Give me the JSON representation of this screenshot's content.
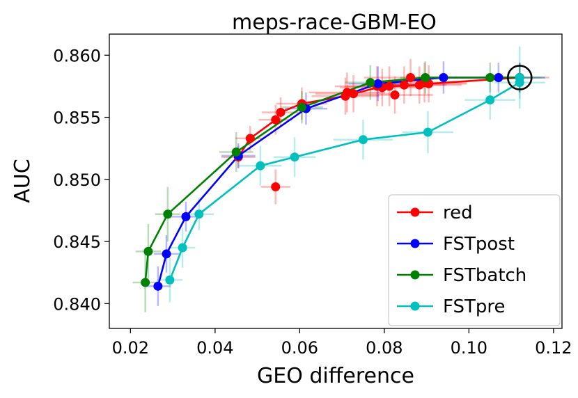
{
  "chart_data": {
    "type": "line",
    "title": "meps-race-GBM-EO",
    "xlabel": "GEO difference",
    "ylabel": "AUC",
    "xlim": [
      0.015,
      0.122
    ],
    "ylim": [
      0.838,
      0.8617
    ],
    "xticks": [
      0.02,
      0.04,
      0.06,
      0.08,
      0.1,
      0.12
    ],
    "xtick_labels": [
      "0.02",
      "0.04",
      "0.06",
      "0.08",
      "0.10",
      "0.12"
    ],
    "yticks": [
      0.84,
      0.845,
      0.85,
      0.855,
      0.86
    ],
    "ytick_labels": [
      "0.840",
      "0.845",
      "0.850",
      "0.855",
      "0.860"
    ],
    "legend_position": "lower-right",
    "highlight_point": {
      "x": 0.112,
      "y": 0.8582
    },
    "series": [
      {
        "name": "red",
        "color": "#ff0000",
        "line": [
          [
            0.0455,
            0.8518
          ],
          [
            0.0483,
            0.8533
          ],
          [
            0.0543,
            0.8548
          ],
          [
            0.0555,
            0.8554
          ],
          [
            0.0605,
            0.8561
          ],
          [
            0.0708,
            0.8567
          ],
          [
            0.0727,
            0.8569
          ],
          [
            0.0785,
            0.8574
          ],
          [
            0.0812,
            0.8575
          ],
          [
            0.0883,
            0.8576
          ],
          [
            0.0905,
            0.8577
          ],
          [
            0.112,
            0.8582
          ]
        ],
        "points": [
          {
            "x": 0.0455,
            "y": 0.8518,
            "xerr": 0.004,
            "yerr": 0.0009
          },
          {
            "x": 0.0483,
            "y": 0.8533,
            "xerr": 0.0035,
            "yerr": 0.001
          },
          {
            "x": 0.0543,
            "y": 0.8494,
            "xerr": 0.0035,
            "yerr": 0.0014
          },
          {
            "x": 0.0543,
            "y": 0.8548,
            "xerr": 0.004,
            "yerr": 0.0012
          },
          {
            "x": 0.0555,
            "y": 0.8554,
            "xerr": 0.0045,
            "yerr": 0.0012
          },
          {
            "x": 0.0605,
            "y": 0.8561,
            "xerr": 0.006,
            "yerr": 0.0013
          },
          {
            "x": 0.0708,
            "y": 0.8567,
            "xerr": 0.008,
            "yerr": 0.0015
          },
          {
            "x": 0.0712,
            "y": 0.857,
            "xerr": 0.009,
            "yerr": 0.0016
          },
          {
            "x": 0.0727,
            "y": 0.8569,
            "xerr": 0.009,
            "yerr": 0.0015
          },
          {
            "x": 0.0783,
            "y": 0.8575,
            "xerr": 0.01,
            "yerr": 0.0016
          },
          {
            "x": 0.0795,
            "y": 0.8574,
            "xerr": 0.01,
            "yerr": 0.0015
          },
          {
            "x": 0.0812,
            "y": 0.8575,
            "xerr": 0.01,
            "yerr": 0.0016
          },
          {
            "x": 0.0825,
            "y": 0.8568,
            "xerr": 0.009,
            "yerr": 0.0015
          },
          {
            "x": 0.0847,
            "y": 0.8576,
            "xerr": 0.01,
            "yerr": 0.0015
          },
          {
            "x": 0.0862,
            "y": 0.8582,
            "xerr": 0.011,
            "yerr": 0.0015
          },
          {
            "x": 0.0883,
            "y": 0.8576,
            "xerr": 0.01,
            "yerr": 0.0015
          },
          {
            "x": 0.0895,
            "y": 0.8578,
            "xerr": 0.01,
            "yerr": 0.0016
          },
          {
            "x": 0.0905,
            "y": 0.8577,
            "xerr": 0.009,
            "yerr": 0.0015
          },
          {
            "x": 0.112,
            "y": 0.8582,
            "xerr": 0.007,
            "yerr": 0.0012
          }
        ]
      },
      {
        "name": "FSTpost",
        "color": "#0000ff",
        "line": [
          [
            0.0265,
            0.8414
          ],
          [
            0.0285,
            0.844
          ],
          [
            0.0331,
            0.847
          ],
          [
            0.0455,
            0.8519
          ],
          [
            0.0615,
            0.8557
          ],
          [
            0.0785,
            0.8577
          ],
          [
            0.094,
            0.8582
          ],
          [
            0.107,
            0.8582
          ],
          [
            0.112,
            0.8582
          ]
        ],
        "points": [
          {
            "x": 0.0265,
            "y": 0.8414,
            "xerr": 0.003,
            "yerr": 0.0016
          },
          {
            "x": 0.0285,
            "y": 0.844,
            "xerr": 0.003,
            "yerr": 0.0015
          },
          {
            "x": 0.0331,
            "y": 0.847,
            "xerr": 0.0035,
            "yerr": 0.0012
          },
          {
            "x": 0.0455,
            "y": 0.8519,
            "xerr": 0.004,
            "yerr": 0.001
          },
          {
            "x": 0.0615,
            "y": 0.8557,
            "xerr": 0.005,
            "yerr": 0.0013
          },
          {
            "x": 0.0785,
            "y": 0.8577,
            "xerr": 0.007,
            "yerr": 0.0014
          },
          {
            "x": 0.094,
            "y": 0.8582,
            "xerr": 0.006,
            "yerr": 0.0013
          },
          {
            "x": 0.107,
            "y": 0.8582,
            "xerr": 0.005,
            "yerr": 0.0012
          },
          {
            "x": 0.112,
            "y": 0.8582,
            "xerr": 0.006,
            "yerr": 0.0012
          }
        ]
      },
      {
        "name": "FSTbatch",
        "color": "#008000",
        "line": [
          [
            0.0235,
            0.8417
          ],
          [
            0.0242,
            0.8442
          ],
          [
            0.0288,
            0.8472
          ],
          [
            0.045,
            0.8522
          ],
          [
            0.0605,
            0.8558
          ],
          [
            0.0767,
            0.8578
          ],
          [
            0.0897,
            0.8582
          ],
          [
            0.105,
            0.8582
          ],
          [
            0.112,
            0.8582
          ]
        ],
        "points": [
          {
            "x": 0.0235,
            "y": 0.8417,
            "xerr": 0.003,
            "yerr": 0.0024
          },
          {
            "x": 0.0242,
            "y": 0.8442,
            "xerr": 0.003,
            "yerr": 0.0022
          },
          {
            "x": 0.0288,
            "y": 0.8472,
            "xerr": 0.003,
            "yerr": 0.0022
          },
          {
            "x": 0.045,
            "y": 0.8522,
            "xerr": 0.004,
            "yerr": 0.0016
          },
          {
            "x": 0.0605,
            "y": 0.8558,
            "xerr": 0.005,
            "yerr": 0.0013
          },
          {
            "x": 0.0767,
            "y": 0.8578,
            "xerr": 0.006,
            "yerr": 0.0014
          },
          {
            "x": 0.0897,
            "y": 0.8582,
            "xerr": 0.006,
            "yerr": 0.0013
          },
          {
            "x": 0.105,
            "y": 0.8582,
            "xerr": 0.005,
            "yerr": 0.0012
          },
          {
            "x": 0.112,
            "y": 0.8582,
            "xerr": 0.005,
            "yerr": 0.0012
          }
        ]
      },
      {
        "name": "FSTpre",
        "color": "#00bfbf",
        "line": [
          [
            0.0293,
            0.8419
          ],
          [
            0.0323,
            0.8445
          ],
          [
            0.0362,
            0.8472
          ],
          [
            0.0507,
            0.8511
          ],
          [
            0.0588,
            0.8518
          ],
          [
            0.075,
            0.8532
          ],
          [
            0.0903,
            0.8538
          ],
          [
            0.105,
            0.8564
          ],
          [
            0.112,
            0.8578
          ],
          [
            0.112,
            0.8582
          ]
        ],
        "points": [
          {
            "x": 0.0293,
            "y": 0.8419,
            "xerr": 0.003,
            "yerr": 0.0018
          },
          {
            "x": 0.0323,
            "y": 0.8445,
            "xerr": 0.003,
            "yerr": 0.0016
          },
          {
            "x": 0.0362,
            "y": 0.8472,
            "xerr": 0.0035,
            "yerr": 0.0013
          },
          {
            "x": 0.0507,
            "y": 0.8511,
            "xerr": 0.005,
            "yerr": 0.0016
          },
          {
            "x": 0.0588,
            "y": 0.8518,
            "xerr": 0.005,
            "yerr": 0.0016
          },
          {
            "x": 0.075,
            "y": 0.8532,
            "xerr": 0.007,
            "yerr": 0.0016
          },
          {
            "x": 0.0903,
            "y": 0.8538,
            "xerr": 0.006,
            "yerr": 0.0017
          },
          {
            "x": 0.105,
            "y": 0.8564,
            "xerr": 0.006,
            "yerr": 0.0016
          },
          {
            "x": 0.112,
            "y": 0.8578,
            "xerr": 0.006,
            "yerr": 0.0013
          },
          {
            "x": 0.112,
            "y": 0.8582,
            "xerr": 0.006,
            "yerr": 0.0025
          }
        ]
      }
    ]
  }
}
